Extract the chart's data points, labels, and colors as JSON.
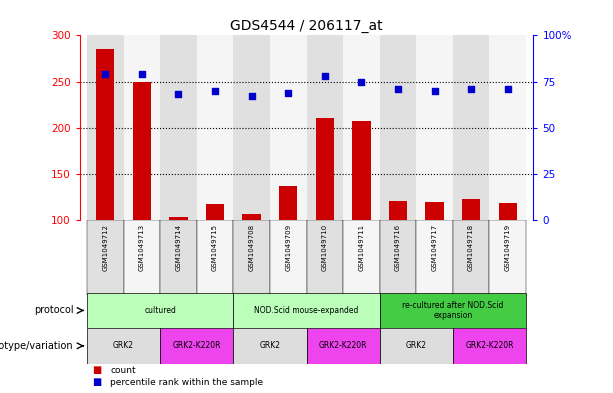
{
  "title": "GDS4544 / 206117_at",
  "samples": [
    "GSM1049712",
    "GSM1049713",
    "GSM1049714",
    "GSM1049715",
    "GSM1049708",
    "GSM1049709",
    "GSM1049710",
    "GSM1049711",
    "GSM1049716",
    "GSM1049717",
    "GSM1049718",
    "GSM1049719"
  ],
  "counts": [
    285,
    250,
    103,
    117,
    107,
    137,
    211,
    207,
    121,
    120,
    123,
    119
  ],
  "percentile_ranks": [
    79,
    79,
    68,
    70,
    67,
    69,
    78,
    75,
    71,
    70,
    71,
    71
  ],
  "ylim_left": [
    100,
    300
  ],
  "ylim_right": [
    0,
    100
  ],
  "yticks_left": [
    100,
    150,
    200,
    250,
    300
  ],
  "yticks_right": [
    0,
    25,
    50,
    75,
    100
  ],
  "ytick_labels_right": [
    "0",
    "25",
    "50",
    "75",
    "100%"
  ],
  "protocol_spans": [
    {
      "label": "cultured",
      "start": 0,
      "end": 4,
      "color": "#bbffbb"
    },
    {
      "label": "NOD.Scid mouse-expanded",
      "start": 4,
      "end": 8,
      "color": "#bbffbb"
    },
    {
      "label": "re-cultured after NOD.Scid\nexpansion",
      "start": 8,
      "end": 12,
      "color": "#44cc44"
    }
  ],
  "genotype_spans": [
    {
      "label": "GRK2",
      "start": 0,
      "end": 2,
      "color": "#dddddd"
    },
    {
      "label": "GRK2-K220R",
      "start": 2,
      "end": 4,
      "color": "#ee44ee"
    },
    {
      "label": "GRK2",
      "start": 4,
      "end": 6,
      "color": "#dddddd"
    },
    {
      "label": "GRK2-K220R",
      "start": 6,
      "end": 8,
      "color": "#ee44ee"
    },
    {
      "label": "GRK2",
      "start": 8,
      "end": 10,
      "color": "#dddddd"
    },
    {
      "label": "GRK2-K220R",
      "start": 10,
      "end": 12,
      "color": "#ee44ee"
    }
  ],
  "bar_color": "#cc0000",
  "dot_color": "#0000cc",
  "col_bg_even": "#e0e0e0",
  "col_bg_odd": "#f5f5f5"
}
